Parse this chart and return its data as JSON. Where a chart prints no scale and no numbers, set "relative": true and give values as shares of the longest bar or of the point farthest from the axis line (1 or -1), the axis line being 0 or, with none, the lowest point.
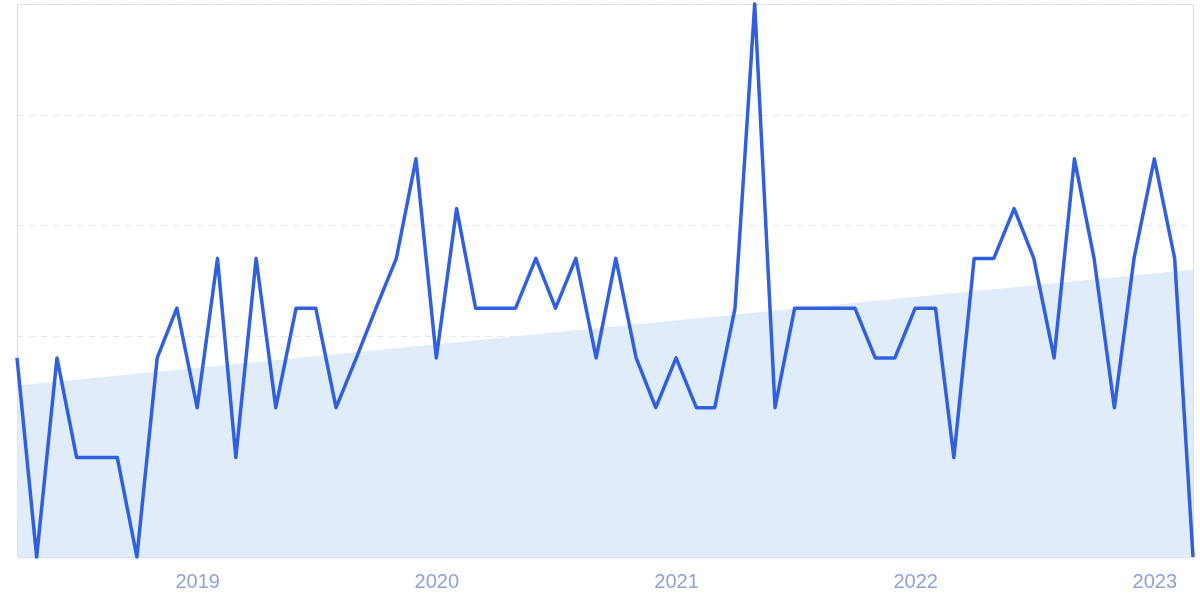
{
  "chart_data": {
    "type": "line",
    "relative": true,
    "grid": "y",
    "tick_labels": "x",
    "line_style": "solid",
    "marker": "none",
    "x": [
      "2018-04",
      "2018-05",
      "2018-06",
      "2018-07",
      "2018-08",
      "2018-09",
      "2018-10",
      "2018-11",
      "2018-12",
      "2019-01",
      "2019-02",
      "2019-03",
      "2019-04",
      "2019-05",
      "2019-06",
      "2019-07",
      "2019-08",
      "2019-09",
      "2019-10",
      "2019-11",
      "2019-12",
      "2020-01",
      "2020-02",
      "2020-03",
      "2020-04",
      "2020-05",
      "2020-06",
      "2020-07",
      "2020-08",
      "2020-09",
      "2020-10",
      "2020-11",
      "2020-12",
      "2021-01",
      "2021-02",
      "2021-03",
      "2021-04",
      "2021-05",
      "2021-06",
      "2021-07",
      "2021-08",
      "2021-09",
      "2021-10",
      "2021-11",
      "2021-12",
      "2022-01",
      "2022-02",
      "2022-03",
      "2022-04",
      "2022-05",
      "2022-06",
      "2022-07",
      "2022-08",
      "2022-09",
      "2022-10",
      "2022-11",
      "2022-12",
      "2023-01",
      "2023-02",
      "2023-03"
    ],
    "xlim": [
      "2018-04",
      "2023-03"
    ],
    "xticks": [
      "2019",
      "2020",
      "2021",
      "2022",
      "2023"
    ],
    "series": [
      {
        "type": "area",
        "color": "#dce9fa",
        "x": [
          "2018-04",
          "2023-03"
        ],
        "values": [
          0.31,
          0.52
        ]
      },
      {
        "color": "#3060e0",
        "values": [
          0.36,
          0,
          0.36,
          0.18,
          0.18,
          0.18,
          0,
          0.36,
          0.45,
          0.27,
          0.54,
          0.18,
          0.54,
          0.27,
          0.45,
          0.45,
          0.27,
          0.36,
          0.45,
          0.54,
          0.72,
          0.36,
          0.63,
          0.45,
          0.45,
          0.45,
          0.54,
          0.45,
          0.54,
          0.36,
          0.54,
          0.36,
          0.27,
          0.36,
          0.27,
          0.27,
          0.45,
          1,
          0.27,
          0.45,
          0.45,
          0.45,
          0.45,
          0.36,
          0.36,
          0.45,
          0.45,
          0.18,
          0.54,
          0.54,
          0.63,
          0.54,
          0.36,
          0.72,
          0.54,
          0.27,
          0.54,
          0.72,
          0.54,
          0
        ]
      }
    ]
  }
}
